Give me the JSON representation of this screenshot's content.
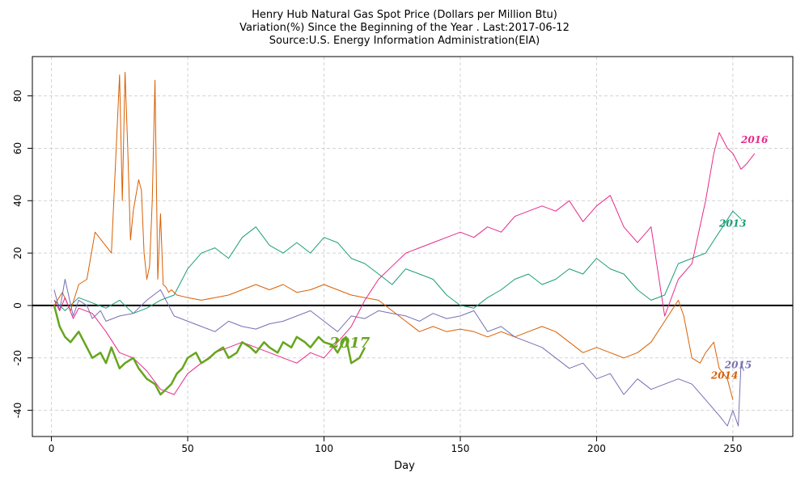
{
  "chart_data": {
    "type": "line",
    "title": "Henry Hub Natural Gas Spot Price (Dollars per Million Btu)",
    "subtitle": "Variation(%) Since the Beginning of the Year . Last:2017-06-12",
    "source": "Source:U.S. Energy Information Administration(EIA)",
    "xlabel": "Day",
    "ylabel": "",
    "xlim": [
      -7,
      272
    ],
    "ylim": [
      -50,
      95
    ],
    "xticks": [
      0,
      50,
      100,
      150,
      200,
      250
    ],
    "yticks": [
      -40,
      -20,
      0,
      20,
      40,
      60,
      80
    ],
    "grid": true,
    "series": [
      {
        "name": "2013",
        "color": "#1b9e77",
        "label_at": [
          245,
          30
        ],
        "x": [
          1,
          5,
          10,
          15,
          20,
          25,
          30,
          35,
          40,
          45,
          50,
          55,
          60,
          65,
          70,
          75,
          80,
          85,
          90,
          95,
          100,
          105,
          110,
          115,
          120,
          125,
          130,
          135,
          140,
          145,
          150,
          155,
          160,
          165,
          170,
          175,
          180,
          185,
          190,
          195,
          200,
          205,
          210,
          215,
          220,
          225,
          230,
          235,
          240,
          245,
          250,
          253
        ],
        "y": [
          2,
          -2,
          3,
          1,
          -1,
          2,
          -3,
          -1,
          2,
          4,
          14,
          20,
          22,
          18,
          26,
          30,
          23,
          20,
          24,
          20,
          26,
          24,
          18,
          16,
          12,
          8,
          14,
          12,
          10,
          4,
          0,
          -1,
          3,
          6,
          10,
          12,
          8,
          10,
          14,
          12,
          18,
          14,
          12,
          6,
          2,
          4,
          16,
          18,
          20,
          28,
          36,
          33
        ]
      },
      {
        "name": "2014",
        "color": "#d95f02",
        "label_at": [
          242,
          -28
        ],
        "x": [
          1,
          4,
          7,
          10,
          13,
          16,
          19,
          22,
          24,
          25,
          26,
          27,
          28,
          29,
          30,
          31,
          32,
          33,
          34,
          35,
          36,
          37,
          38,
          39,
          40,
          41,
          42,
          43,
          44,
          46,
          50,
          55,
          60,
          65,
          70,
          75,
          80,
          85,
          90,
          95,
          100,
          105,
          110,
          115,
          120,
          125,
          130,
          135,
          140,
          145,
          150,
          155,
          160,
          165,
          170,
          175,
          180,
          185,
          190,
          195,
          200,
          205,
          210,
          215,
          220,
          225,
          230,
          232,
          235,
          238,
          240,
          243,
          245,
          248,
          250
        ],
        "y": [
          0,
          5,
          -2,
          8,
          10,
          28,
          24,
          20,
          65,
          88,
          40,
          89,
          60,
          25,
          36,
          42,
          48,
          44,
          20,
          10,
          15,
          40,
          86,
          10,
          35,
          8,
          7,
          5,
          6,
          4,
          3,
          2,
          3,
          4,
          6,
          8,
          6,
          8,
          5,
          6,
          8,
          6,
          4,
          3,
          2,
          -2,
          -6,
          -10,
          -8,
          -10,
          -9,
          -10,
          -12,
          -10,
          -12,
          -10,
          -8,
          -10,
          -14,
          -18,
          -16,
          -18,
          -20,
          -18,
          -14,
          -6,
          2,
          -4,
          -20,
          -22,
          -18,
          -14,
          -24,
          -28,
          -36
        ]
      },
      {
        "name": "2015",
        "color": "#7570b3",
        "label_at": [
          247,
          -24
        ],
        "x": [
          1,
          3,
          5,
          8,
          10,
          13,
          15,
          18,
          20,
          25,
          30,
          35,
          40,
          45,
          50,
          55,
          60,
          65,
          70,
          75,
          80,
          85,
          90,
          95,
          100,
          105,
          110,
          115,
          120,
          125,
          130,
          135,
          140,
          145,
          150,
          155,
          160,
          165,
          170,
          175,
          180,
          185,
          190,
          195,
          200,
          205,
          210,
          215,
          220,
          225,
          230,
          235,
          240,
          245,
          248,
          250,
          252,
          253,
          254
        ],
        "y": [
          6,
          -2,
          10,
          -4,
          2,
          0,
          -5,
          -2,
          -6,
          -4,
          -3,
          2,
          6,
          -4,
          -6,
          -8,
          -10,
          -6,
          -8,
          -9,
          -7,
          -6,
          -4,
          -2,
          -6,
          -10,
          -4,
          -5,
          -2,
          -3,
          -4,
          -6,
          -3,
          -5,
          -4,
          -2,
          -10,
          -8,
          -12,
          -14,
          -16,
          -20,
          -24,
          -22,
          -28,
          -26,
          -34,
          -28,
          -32,
          -30,
          -28,
          -30,
          -36,
          -42,
          -46,
          -40,
          -46,
          -22,
          -25
        ]
      },
      {
        "name": "2016",
        "color": "#e7298a",
        "label_at": [
          253,
          62
        ],
        "x": [
          1,
          3,
          5,
          8,
          10,
          15,
          20,
          25,
          30,
          35,
          40,
          45,
          50,
          55,
          60,
          65,
          70,
          75,
          80,
          85,
          90,
          95,
          100,
          105,
          110,
          115,
          120,
          125,
          130,
          135,
          140,
          145,
          150,
          155,
          160,
          165,
          170,
          175,
          180,
          185,
          190,
          195,
          200,
          205,
          210,
          215,
          220,
          225,
          230,
          235,
          240,
          243,
          245,
          248,
          250,
          253,
          255,
          258
        ],
        "y": [
          2,
          -2,
          3,
          -5,
          -1,
          -3,
          -10,
          -18,
          -20,
          -25,
          -32,
          -34,
          -26,
          -22,
          -18,
          -16,
          -14,
          -16,
          -18,
          -20,
          -22,
          -18,
          -20,
          -14,
          -8,
          2,
          10,
          15,
          20,
          22,
          24,
          26,
          28,
          26,
          30,
          28,
          34,
          36,
          38,
          36,
          40,
          32,
          38,
          42,
          30,
          24,
          30,
          -4,
          10,
          16,
          40,
          58,
          66,
          60,
          58,
          52,
          54,
          58
        ]
      },
      {
        "name": "2017",
        "color": "#66a61e",
        "label_at": [
          102,
          -16
        ],
        "bold": true,
        "x": [
          1,
          3,
          5,
          7,
          10,
          13,
          15,
          18,
          20,
          22,
          25,
          27,
          30,
          32,
          35,
          38,
          40,
          42,
          44,
          46,
          48,
          50,
          53,
          55,
          58,
          60,
          63,
          65,
          68,
          70,
          73,
          75,
          78,
          80,
          83,
          85,
          88,
          90,
          93,
          95,
          98,
          100,
          103,
          105,
          108,
          110,
          113,
          115
        ],
        "y": [
          0,
          -8,
          -12,
          -14,
          -10,
          -16,
          -20,
          -18,
          -22,
          -16,
          -24,
          -22,
          -20,
          -24,
          -28,
          -30,
          -34,
          -32,
          -30,
          -26,
          -24,
          -20,
          -18,
          -22,
          -20,
          -18,
          -16,
          -20,
          -18,
          -14,
          -16,
          -18,
          -14,
          -16,
          -18,
          -14,
          -16,
          -12,
          -14,
          -16,
          -12,
          -14,
          -15,
          -18,
          -12,
          -22,
          -20,
          -16
        ]
      }
    ]
  }
}
